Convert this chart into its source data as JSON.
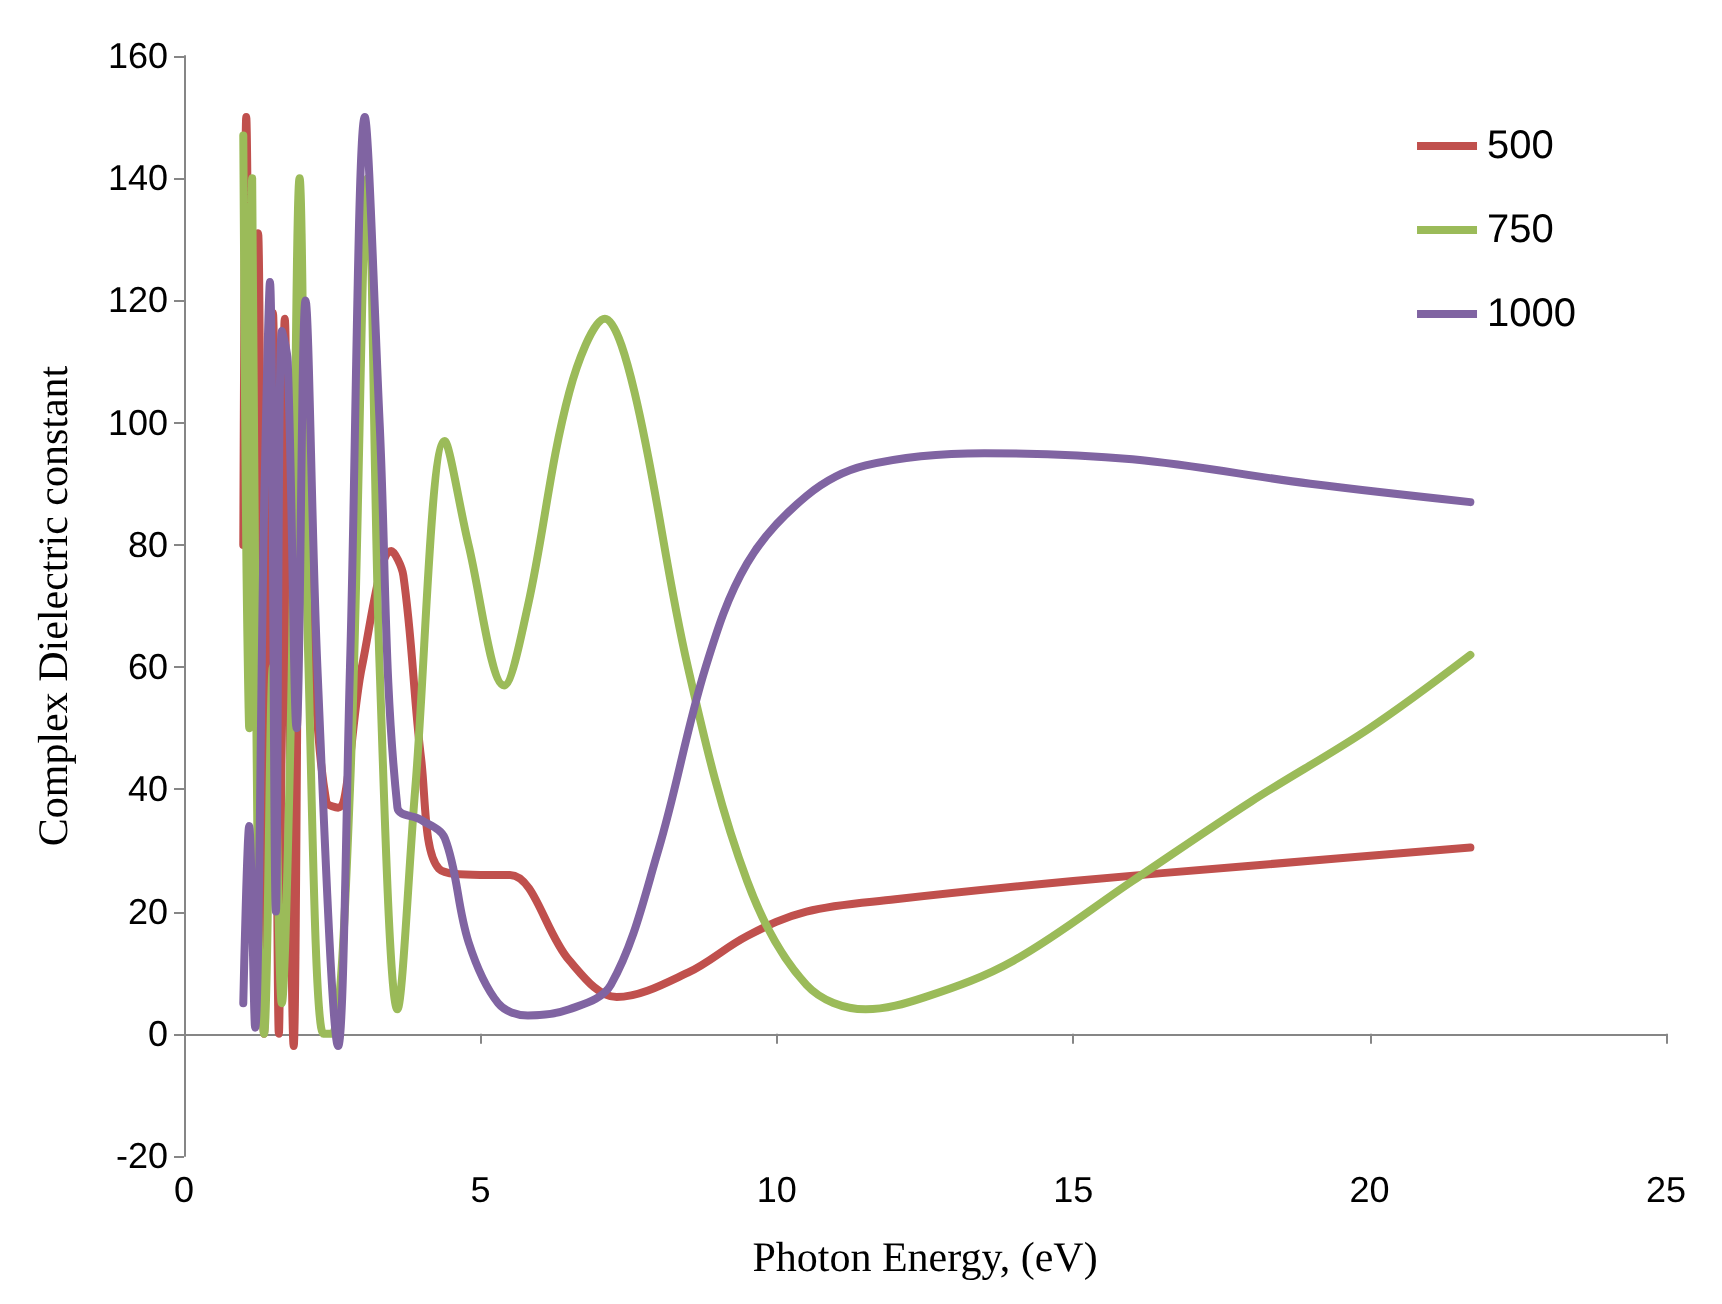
{
  "chart_data": {
    "type": "line",
    "xlabel": "Photon Energy, (eV)",
    "ylabel": "Complex Dielectric constant",
    "xlim": [
      0,
      25
    ],
    "xticks": [
      0,
      5,
      10,
      15,
      20,
      25
    ],
    "ylim": [
      -20,
      160
    ],
    "yticks": [
      -20,
      0,
      20,
      40,
      60,
      80,
      100,
      120,
      140,
      160
    ],
    "legend": "top right",
    "marker": "none",
    "line_style": "solid",
    "series": [
      {
        "name": "500",
        "color": "#c0504d",
        "x": [
          1.0,
          1.05,
          1.15,
          1.25,
          1.35,
          1.5,
          1.6,
          1.7,
          1.85,
          2.0,
          2.2,
          2.4,
          2.6,
          3.0,
          3.5,
          3.7,
          4.0,
          4.3,
          5.0,
          5.5,
          6.5,
          7.3,
          8.5,
          9.5,
          10.5,
          12,
          15,
          18,
          21.7
        ],
        "values": [
          80,
          150,
          60,
          131,
          0,
          118,
          0,
          117,
          -2,
          115,
          60,
          38,
          37,
          60,
          79,
          75,
          45,
          27,
          26,
          26,
          12,
          6,
          10,
          16,
          20,
          22,
          25,
          27.5,
          30.5
        ]
      },
      {
        "name": "750",
        "color": "#9bbb59",
        "x": [
          1.0,
          1.05,
          1.1,
          1.15,
          1.25,
          1.35,
          1.5,
          1.65,
          1.8,
          1.95,
          2.1,
          2.35,
          2.5,
          2.8,
          3.1,
          3.3,
          3.6,
          3.9,
          4.4,
          4.8,
          5.4,
          5.8,
          6.5,
          7.1,
          7.6,
          8.5,
          9.5,
          10.5,
          11.5,
          12.5,
          14,
          16,
          18,
          20,
          21.7
        ],
        "values": [
          147,
          80,
          50,
          140,
          20,
          0,
          60,
          5,
          50,
          140,
          60,
          0,
          0,
          40,
          140,
          60,
          4,
          40,
          97,
          80,
          57,
          70,
          105,
          117,
          105,
          60,
          25,
          8,
          4,
          6,
          12,
          25,
          38,
          50,
          62
        ]
      },
      {
        "name": "1000",
        "color": "#8064a2",
        "x": [
          1.0,
          1.1,
          1.2,
          1.35,
          1.45,
          1.55,
          1.65,
          1.75,
          1.9,
          2.05,
          2.25,
          2.6,
          2.8,
          3.05,
          3.3,
          3.6,
          4.0,
          4.4,
          4.8,
          5.3,
          5.8,
          6.5,
          7.2,
          8.0,
          8.8,
          9.5,
          10.5,
          11.5,
          13.5,
          16,
          19,
          21.7
        ],
        "values": [
          5,
          34,
          1,
          85,
          123,
          20,
          115,
          110,
          50,
          120,
          60,
          -2,
          60,
          150,
          100,
          37,
          35,
          32,
          15,
          5,
          3,
          4,
          8,
          30,
          60,
          77,
          88,
          93,
          95,
          94,
          90,
          87
        ]
      }
    ]
  }
}
